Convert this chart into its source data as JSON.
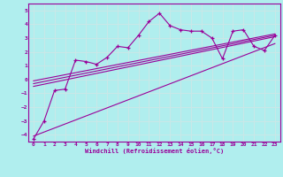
{
  "xlabel": "Windchill (Refroidissement éolien,°C)",
  "background_color": "#b0eeee",
  "grid_color": "#c8e8e8",
  "line_color": "#990099",
  "x_data": [
    0,
    1,
    2,
    3,
    4,
    5,
    6,
    7,
    8,
    9,
    10,
    11,
    12,
    13,
    14,
    15,
    16,
    17,
    18,
    19,
    20,
    21,
    22,
    23
  ],
  "y_main": [
    -4.3,
    -3.0,
    -0.8,
    -0.7,
    1.4,
    1.3,
    1.1,
    1.6,
    2.4,
    2.3,
    3.2,
    4.2,
    4.8,
    3.9,
    3.6,
    3.5,
    3.5,
    3.0,
    1.5,
    3.5,
    3.6,
    2.4,
    2.1,
    3.2
  ],
  "ylim": [
    -4.5,
    5.5
  ],
  "xlim": [
    -0.5,
    23.5
  ],
  "yticks": [
    -4,
    -3,
    -2,
    -1,
    0,
    1,
    2,
    3,
    4,
    5
  ],
  "xticks": [
    0,
    1,
    2,
    3,
    4,
    5,
    6,
    7,
    8,
    9,
    10,
    11,
    12,
    13,
    14,
    15,
    16,
    17,
    18,
    19,
    20,
    21,
    22,
    23
  ],
  "regression_lines": [
    {
      "x0": 0,
      "y0": -4.1,
      "x1": 23,
      "y1": 2.6
    },
    {
      "x0": 0,
      "y0": -0.5,
      "x1": 23,
      "y1": 3.1
    },
    {
      "x0": 0,
      "y0": -0.3,
      "x1": 23,
      "y1": 3.2
    },
    {
      "x0": 0,
      "y0": -0.1,
      "x1": 23,
      "y1": 3.3
    }
  ]
}
